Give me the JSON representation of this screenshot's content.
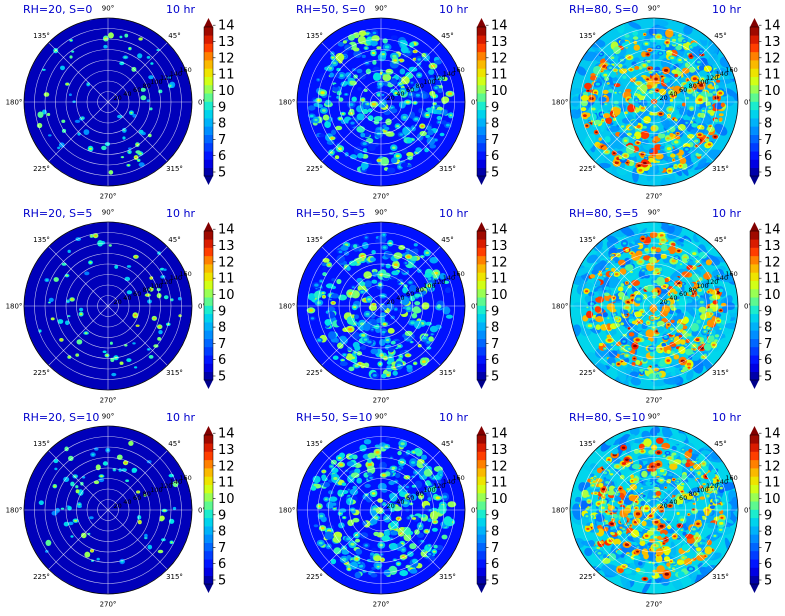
{
  "figure": {
    "panel_time_label": "10 hr",
    "angle_ticks": [
      "0°",
      "45°",
      "90°",
      "135°",
      "180°",
      "225°",
      "270°",
      "315°"
    ],
    "radial_ticks": [
      "20",
      "40",
      "60",
      "80",
      "100",
      "120",
      "140",
      "160"
    ],
    "colorbar_ticks": [
      "5",
      "6",
      "7",
      "8",
      "9",
      "10",
      "11",
      "12",
      "13",
      "14"
    ]
  },
  "chart_data": [
    {
      "type": "heatmap",
      "projection": "polar",
      "title": "RH=20, S=0",
      "time_label": "10 hr",
      "rlim": [
        0,
        160
      ],
      "clim": [
        5,
        14
      ],
      "colormap": "jet",
      "mean_level": 5.4,
      "spot_density": "sparse"
    },
    {
      "type": "heatmap",
      "projection": "polar",
      "title": "RH=50, S=0",
      "time_label": "10 hr",
      "rlim": [
        0,
        160
      ],
      "clim": [
        5,
        14
      ],
      "colormap": "jet",
      "mean_level": 6.2,
      "spot_density": "medium"
    },
    {
      "type": "heatmap",
      "projection": "polar",
      "title": "RH=80, S=0",
      "time_label": "10 hr",
      "rlim": [
        0,
        160
      ],
      "clim": [
        5,
        14
      ],
      "colormap": "jet",
      "mean_level": 8.6,
      "spot_density": "dense"
    },
    {
      "type": "heatmap",
      "projection": "polar",
      "title": "RH=20, S=5",
      "time_label": "10 hr",
      "rlim": [
        0,
        160
      ],
      "clim": [
        5,
        14
      ],
      "colormap": "jet",
      "mean_level": 5.4,
      "spot_density": "sparse"
    },
    {
      "type": "heatmap",
      "projection": "polar",
      "title": "RH=50, S=5",
      "time_label": "10 hr",
      "rlim": [
        0,
        160
      ],
      "clim": [
        5,
        14
      ],
      "colormap": "jet",
      "mean_level": 6.2,
      "spot_density": "medium"
    },
    {
      "type": "heatmap",
      "projection": "polar",
      "title": "RH=80, S=5",
      "time_label": "10 hr",
      "rlim": [
        0,
        160
      ],
      "clim": [
        5,
        14
      ],
      "colormap": "jet",
      "mean_level": 8.8,
      "spot_density": "dense"
    },
    {
      "type": "heatmap",
      "projection": "polar",
      "title": "RH=20, S=10",
      "time_label": "10 hr",
      "rlim": [
        0,
        160
      ],
      "clim": [
        5,
        14
      ],
      "colormap": "jet",
      "mean_level": 5.4,
      "spot_density": "sparse"
    },
    {
      "type": "heatmap",
      "projection": "polar",
      "title": "RH=50, S=10",
      "time_label": "10 hr",
      "rlim": [
        0,
        160
      ],
      "clim": [
        5,
        14
      ],
      "colormap": "jet",
      "mean_level": 6.2,
      "spot_density": "medium"
    },
    {
      "type": "heatmap",
      "projection": "polar",
      "title": "RH=80, S=10",
      "time_label": "10 hr",
      "rlim": [
        0,
        160
      ],
      "clim": [
        5,
        14
      ],
      "colormap": "jet",
      "mean_level": 8.8,
      "spot_density": "dense"
    }
  ]
}
